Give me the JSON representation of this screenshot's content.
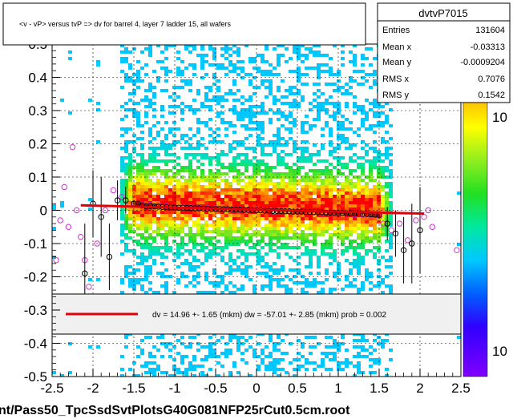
{
  "chart_data": {
    "type": "scatter",
    "title": "<v - vP>       versus  tvP =>  dv for barrel 4, layer 7 ladder 15, all wafers",
    "xlabel": "",
    "ylabel": "",
    "xlim": [
      -2.5,
      2.5
    ],
    "ylim": [
      -0.5,
      0.5
    ],
    "x_ticks": [
      -2.5,
      -2,
      -1.5,
      -1,
      -0.5,
      0,
      0.5,
      1,
      1.5,
      2,
      2.5
    ],
    "x_tick_labels": [
      "-2.5",
      "-2",
      "-1.5",
      "-1",
      "-0.5",
      "0",
      "0.5",
      "1",
      "1.5",
      "2",
      "2.5"
    ],
    "y_ticks": [
      -0.5,
      -0.4,
      -0.3,
      -0.2,
      -0.1,
      0,
      0.1,
      0.2,
      0.3,
      0.4,
      0.5
    ],
    "y_tick_labels": [
      "-0.5",
      "-0.4",
      "-0.3",
      "-0.2",
      "-0.1",
      "0",
      "0.1",
      "0.2",
      "0.3",
      "0.4",
      "0.5"
    ],
    "grid": true,
    "colorbar_labels": [
      "10",
      "10"
    ],
    "stats": {
      "name": "dvtvP7015",
      "rows": [
        {
          "label": "Entries",
          "value": "131604"
        },
        {
          "label": "Mean x",
          "value": "-0.03313"
        },
        {
          "label": "Mean y",
          "value": "-0.0009204"
        },
        {
          "label": "RMS x",
          "value": "0.7076"
        },
        {
          "label": "RMS y",
          "value": "0.1542"
        }
      ]
    },
    "fit_legend": "dv =   14.96 +-  1.65 (mkm) dw =  -57.01 +-  2.85 (mkm) prob = 0.002",
    "fit_line": {
      "x": [
        -2.15,
        2.05
      ],
      "y": [
        0.01496,
        -0.01006
      ]
    },
    "profile_black": {
      "x": [
        -2.1,
        -2.0,
        -1.9,
        -1.8,
        -1.7,
        -1.6,
        -1.5,
        -1.45,
        -1.4,
        -1.35,
        -1.3,
        -1.25,
        -1.2,
        -1.15,
        -1.1,
        -1.05,
        -1.0,
        -0.95,
        -0.9,
        -0.85,
        -0.8,
        -0.75,
        -0.7,
        -0.65,
        -0.6,
        -0.55,
        -0.5,
        -0.45,
        -0.4,
        -0.35,
        -0.3,
        -0.25,
        -0.2,
        -0.15,
        -0.1,
        -0.05,
        0.0,
        0.05,
        0.1,
        0.15,
        0.2,
        0.25,
        0.3,
        0.35,
        0.4,
        0.45,
        0.5,
        0.55,
        0.6,
        0.65,
        0.7,
        0.75,
        0.8,
        0.85,
        0.9,
        0.95,
        1.0,
        1.05,
        1.1,
        1.15,
        1.2,
        1.25,
        1.3,
        1.35,
        1.4,
        1.45,
        1.5,
        1.6,
        1.7,
        1.8,
        1.9,
        2.0
      ],
      "y": [
        -0.19,
        0.02,
        -0.02,
        -0.14,
        0.03,
        0.03,
        0.02,
        0.02,
        0.015,
        0.012,
        0.013,
        0.012,
        0.011,
        0.01,
        0.01,
        0.009,
        0.009,
        0.008,
        0.008,
        0.007,
        0.007,
        0.006,
        0.006,
        0.005,
        0.005,
        0.004,
        0.004,
        0.004,
        0.003,
        0.003,
        0.002,
        0.002,
        0.002,
        0.001,
        0.001,
        0.0,
        0.0,
        0.0,
        -0.001,
        -0.001,
        -0.002,
        -0.002,
        -0.002,
        -0.003,
        -0.003,
        -0.004,
        -0.004,
        -0.004,
        -0.005,
        -0.005,
        -0.005,
        -0.006,
        -0.006,
        -0.007,
        -0.007,
        -0.007,
        -0.008,
        -0.008,
        -0.009,
        -0.009,
        -0.01,
        -0.01,
        -0.011,
        -0.011,
        -0.012,
        -0.013,
        -0.015,
        -0.04,
        -0.07,
        -0.12,
        -0.1,
        -0.06
      ],
      "err": [
        0.15,
        0.1,
        0.12,
        0.1,
        0.06,
        0.04,
        0.01,
        0.006,
        0.005,
        0.004,
        0.003,
        0.003,
        0.003,
        0.003,
        0.003,
        0.003,
        0.002,
        0.002,
        0.002,
        0.002,
        0.002,
        0.002,
        0.002,
        0.002,
        0.002,
        0.002,
        0.002,
        0.002,
        0.002,
        0.002,
        0.002,
        0.002,
        0.002,
        0.002,
        0.002,
        0.002,
        0.002,
        0.002,
        0.002,
        0.002,
        0.002,
        0.002,
        0.002,
        0.002,
        0.002,
        0.002,
        0.002,
        0.002,
        0.002,
        0.002,
        0.002,
        0.002,
        0.002,
        0.002,
        0.002,
        0.002,
        0.002,
        0.003,
        0.003,
        0.003,
        0.003,
        0.003,
        0.004,
        0.004,
        0.005,
        0.006,
        0.01,
        0.05,
        0.07,
        0.1,
        0.12,
        0.13
      ]
    },
    "profile_magenta": {
      "x": [
        -2.45,
        -2.4,
        -2.35,
        -2.3,
        -2.25,
        -2.2,
        -2.15,
        -2.1,
        -2.05,
        -1.95,
        -1.85,
        -1.75,
        -1.65,
        -1.55,
        -1.5,
        -1.4,
        -1.3,
        -1.2,
        -1.1,
        -1.0,
        -0.9,
        -0.8,
        -0.7,
        -0.6,
        -0.5,
        -0.4,
        -0.3,
        -0.2,
        -0.1,
        0.0,
        0.1,
        0.2,
        0.3,
        0.4,
        0.5,
        0.6,
        0.7,
        0.8,
        0.9,
        1.0,
        1.1,
        1.2,
        1.3,
        1.4,
        1.5,
        1.55,
        1.65,
        1.75,
        1.85,
        1.95,
        2.05,
        2.1,
        2.15,
        2.45
      ],
      "y": [
        -0.15,
        -0.03,
        0.07,
        -0.05,
        0.19,
        0.0,
        -0.08,
        -0.15,
        -0.23,
        -0.1,
        0.0,
        0.06,
        0.04,
        0.02,
        0.02,
        0.018,
        0.016,
        0.015,
        0.012,
        0.01,
        0.01,
        0.009,
        0.008,
        0.007,
        0.006,
        0.005,
        0.004,
        0.003,
        0.002,
        0.001,
        0.0,
        -0.001,
        -0.002,
        -0.003,
        -0.004,
        -0.005,
        -0.006,
        -0.007,
        -0.008,
        -0.009,
        -0.01,
        -0.012,
        -0.014,
        -0.015,
        -0.02,
        -0.04,
        -0.06,
        -0.04,
        -0.09,
        -0.03,
        -0.02,
        0.0,
        -0.05,
        -0.12
      ],
      "err": [
        0.0,
        0.0,
        0.0,
        0.0,
        0.0,
        0.0,
        0.0,
        0.0,
        0.0,
        0.0,
        0.0,
        0.0,
        0.0,
        0.0,
        0.0,
        0.0,
        0.0,
        0.0,
        0.0,
        0.0,
        0.0,
        0.0,
        0.0,
        0.0,
        0.0,
        0.0,
        0.0,
        0.0,
        0.0,
        0.0,
        0.0,
        0.0,
        0.0,
        0.0,
        0.0,
        0.0,
        0.0,
        0.0,
        0.0,
        0.0,
        0.0,
        0.0,
        0.0,
        0.0,
        0.0,
        0.0,
        0.0,
        0.0,
        0.0,
        0.0,
        0.0,
        0.0,
        0.0,
        0.0
      ]
    },
    "colors": {
      "fit_line": "#e0000a",
      "black_marker": "#000000",
      "magenta_marker": "#cc33cc",
      "grid": "#000000",
      "background": "#ffffff"
    }
  },
  "footer_title": "nt/Pass50_TpcSsdSvtPlotsG40G081NFP25rCut0.5cm.root"
}
